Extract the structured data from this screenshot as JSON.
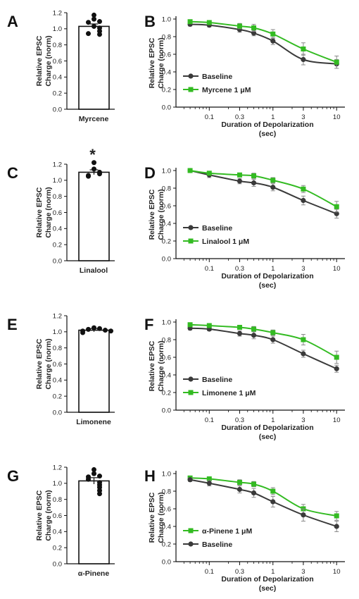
{
  "panels": [
    {
      "id": "A",
      "label": "A",
      "kind": "bar",
      "category": "Myrcene",
      "ylabel_line1": "Relative EPSC",
      "ylabel_line2": "Charge (norm)",
      "ylim": [
        0,
        1.2
      ],
      "yticks": [
        "0.0",
        "0.2",
        "0.4",
        "0.6",
        "0.8",
        "1.0",
        "1.2"
      ],
      "significance": ""
    },
    {
      "id": "B",
      "label": "B",
      "kind": "line",
      "xlabel_line1": "Duration of Depolarization",
      "xlabel_line2": "(sec)",
      "ylabel_line1": "Relative EPSC",
      "ylabel_line2": "Charge (norm)",
      "ylim": [
        0,
        1.0
      ],
      "yticks": [
        "0.0",
        "0.2",
        "0.4",
        "0.6",
        "0.8",
        "1.0"
      ],
      "xticks": [
        "0.1",
        "0.3",
        "1",
        "3",
        "10"
      ]
    },
    {
      "id": "C",
      "label": "C",
      "kind": "bar",
      "category": "Linalool",
      "ylabel_line1": "Relative EPSC",
      "ylabel_line2": "Charge (norm)",
      "ylim": [
        0,
        1.2
      ],
      "yticks": [
        "0.0",
        "0.2",
        "0.4",
        "0.6",
        "0.8",
        "1.0",
        "1.2"
      ],
      "significance": "*"
    },
    {
      "id": "D",
      "label": "D",
      "kind": "line",
      "xlabel_line1": "Duration of Depolarization",
      "xlabel_line2": "(sec)",
      "ylabel_line1": "Relative EPSC",
      "ylabel_line2": "Charge (norm)",
      "ylim": [
        0,
        1.0
      ],
      "yticks": [
        "0.0",
        "0.2",
        "0.4",
        "0.6",
        "0.8",
        "1.0"
      ],
      "xticks": [
        "0.1",
        "0.3",
        "1",
        "3",
        "10"
      ]
    },
    {
      "id": "E",
      "label": "E",
      "kind": "bar",
      "category": "Limonene",
      "ylabel_line1": "Relative EPSC",
      "ylabel_line2": "Charge (norm)",
      "ylim": [
        0,
        1.2
      ],
      "yticks": [
        "0.0",
        "0.2",
        "0.4",
        "0.6",
        "0.8",
        "1.0",
        "1.2"
      ],
      "significance": ""
    },
    {
      "id": "F",
      "label": "F",
      "kind": "line",
      "xlabel_line1": "Duration of Depolarization",
      "xlabel_line2": "(sec)",
      "ylabel_line1": "Relative EPSC",
      "ylabel_line2": "Charge (norm)",
      "ylim": [
        0,
        1.0
      ],
      "yticks": [
        "0.0",
        "0.2",
        "0.4",
        "0.6",
        "0.8",
        "1.0"
      ],
      "xticks": [
        "0.1",
        "0.3",
        "1",
        "3",
        "10"
      ]
    },
    {
      "id": "G",
      "label": "G",
      "kind": "bar",
      "category": "α-Pinene",
      "ylabel_line1": "Relative EPSC",
      "ylabel_line2": "Charge (norm)",
      "ylim": [
        0,
        1.2
      ],
      "yticks": [
        "0.0",
        "0.2",
        "0.4",
        "0.6",
        "0.8",
        "1.0",
        "1.2"
      ],
      "significance": ""
    },
    {
      "id": "H",
      "label": "H",
      "kind": "line",
      "xlabel_line1": "Duration of Depolarization",
      "xlabel_line2": "(sec)",
      "ylabel_line1": "Relative EPSC",
      "ylabel_line2": "Charge (norm)",
      "ylim": [
        0,
        1.0
      ],
      "yticks": [
        "0.0",
        "0.2",
        "0.4",
        "0.6",
        "0.8",
        "1.0"
      ],
      "xticks": [
        "0.1",
        "0.3",
        "1",
        "3",
        "10"
      ]
    }
  ],
  "colors": {
    "baseline": "#3a3a3a",
    "treatment": "#33bb22",
    "bar_fill": "#ffffff",
    "axis": "#111111"
  },
  "chart_data": [
    {
      "panel": "A",
      "type": "bar",
      "categories": [
        "Myrcene"
      ],
      "values": [
        1.03
      ],
      "sem": [
        0.03
      ],
      "points": [
        1.17,
        1.12,
        1.09,
        1.08,
        1.03,
        1.01,
        0.97,
        0.93,
        0.94
      ],
      "ylabel": "Relative EPSC Charge (norm)",
      "ylim": [
        0,
        1.2
      ]
    },
    {
      "panel": "B",
      "type": "line",
      "xscale": "log",
      "x": [
        0.05,
        0.1,
        0.3,
        0.5,
        1,
        3,
        10
      ],
      "xlabel": "Duration of Depolarization (sec)",
      "ylabel": "Relative EPSC Charge (norm)",
      "ylim": [
        0,
        1.0
      ],
      "legend_position": "bottom-left",
      "series": [
        {
          "name": "Baseline",
          "marker": "circle",
          "values": [
            0.94,
            0.93,
            0.88,
            0.84,
            0.75,
            0.54,
            0.49
          ],
          "err": [
            0.02,
            0.02,
            0.03,
            0.03,
            0.04,
            0.06,
            0.05
          ]
        },
        {
          "name": "Myrcene 1 μM",
          "marker": "square",
          "values": [
            0.97,
            0.96,
            0.92,
            0.9,
            0.83,
            0.66,
            0.51
          ],
          "err": [
            0.02,
            0.02,
            0.03,
            0.04,
            0.05,
            0.07,
            0.07
          ]
        }
      ]
    },
    {
      "panel": "C",
      "type": "bar",
      "categories": [
        "Linalool"
      ],
      "values": [
        1.1
      ],
      "sem": [
        0.03
      ],
      "points": [
        1.22,
        1.14,
        1.1,
        1.08,
        1.06,
        1.05
      ],
      "ylabel": "Relative EPSC Charge (norm)",
      "ylim": [
        0,
        1.2
      ]
    },
    {
      "panel": "D",
      "type": "line",
      "xscale": "log",
      "x": [
        0.05,
        0.1,
        0.3,
        0.5,
        1,
        3,
        10
      ],
      "xlabel": "Duration of Depolarization (sec)",
      "ylabel": "Relative EPSC Charge (norm)",
      "ylim": [
        0,
        1.0
      ],
      "legend_position": "bottom-left",
      "series": [
        {
          "name": "Baseline",
          "marker": "circle",
          "values": [
            1.0,
            0.95,
            0.88,
            0.86,
            0.81,
            0.66,
            0.51
          ],
          "err": [
            0.02,
            0.03,
            0.03,
            0.04,
            0.04,
            0.05,
            0.05
          ]
        },
        {
          "name": "Linalool 1 μM",
          "marker": "square",
          "values": [
            1.0,
            0.97,
            0.95,
            0.94,
            0.89,
            0.79,
            0.59
          ],
          "err": [
            0.02,
            0.02,
            0.02,
            0.03,
            0.03,
            0.04,
            0.06
          ]
        }
      ]
    },
    {
      "panel": "E",
      "type": "bar",
      "categories": [
        "Limonene"
      ],
      "values": [
        1.02
      ],
      "sem": [
        0.02
      ],
      "points": [
        1.05,
        1.04,
        1.03,
        1.02,
        1.01,
        1.01,
        0.99
      ],
      "ylabel": "Relative EPSC Charge (norm)",
      "ylim": [
        0,
        1.2
      ]
    },
    {
      "panel": "F",
      "type": "line",
      "xscale": "log",
      "x": [
        0.05,
        0.1,
        0.3,
        0.5,
        1,
        3,
        10
      ],
      "xlabel": "Duration of Depolarization (sec)",
      "ylabel": "Relative EPSC Charge (norm)",
      "ylim": [
        0,
        1.0
      ],
      "legend_position": "bottom-left",
      "series": [
        {
          "name": "Baseline",
          "marker": "circle",
          "values": [
            0.93,
            0.92,
            0.87,
            0.85,
            0.8,
            0.64,
            0.47
          ],
          "err": [
            0.02,
            0.02,
            0.03,
            0.04,
            0.04,
            0.04,
            0.04
          ]
        },
        {
          "name": "Limonene 1 μM",
          "marker": "square",
          "values": [
            0.97,
            0.96,
            0.94,
            0.92,
            0.88,
            0.8,
            0.6
          ],
          "err": [
            0.02,
            0.02,
            0.02,
            0.03,
            0.03,
            0.06,
            0.07
          ]
        }
      ]
    },
    {
      "panel": "G",
      "type": "bar",
      "categories": [
        "α-Pinene"
      ],
      "values": [
        1.03
      ],
      "sem": [
        0.04
      ],
      "points": [
        1.17,
        1.12,
        1.09,
        1.08,
        1.05,
        1.01,
        0.98,
        0.95,
        0.91,
        0.87
      ],
      "ylabel": "Relative EPSC Charge (norm)",
      "ylim": [
        0,
        1.2
      ]
    },
    {
      "panel": "H",
      "type": "line",
      "xscale": "log",
      "x": [
        0.05,
        0.1,
        0.3,
        0.5,
        1,
        3,
        10
      ],
      "xlabel": "Duration of Depolarization (sec)",
      "ylabel": "Relative EPSC Charge (norm)",
      "ylim": [
        0,
        1.0
      ],
      "legend_position": "bottom-left",
      "series": [
        {
          "name": "α-Pinene 1 μM",
          "marker": "square",
          "values": [
            0.95,
            0.94,
            0.9,
            0.88,
            0.8,
            0.6,
            0.52
          ],
          "err": [
            0.02,
            0.02,
            0.03,
            0.03,
            0.04,
            0.05,
            0.05
          ]
        },
        {
          "name": "Baseline",
          "marker": "circle",
          "values": [
            0.93,
            0.89,
            0.82,
            0.78,
            0.68,
            0.53,
            0.4
          ],
          "err": [
            0.02,
            0.03,
            0.04,
            0.05,
            0.06,
            0.07,
            0.06
          ]
        }
      ]
    }
  ]
}
